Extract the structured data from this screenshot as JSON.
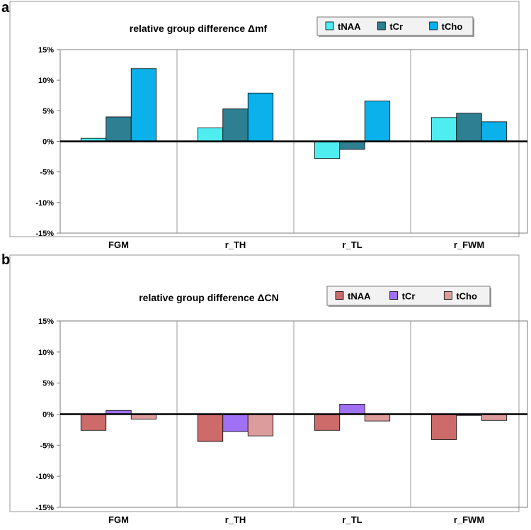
{
  "panels": [
    {
      "letter": "a"
    },
    {
      "letter": "b"
    }
  ],
  "chart_data": [
    {
      "type": "bar",
      "title": "relative group difference  Δmf",
      "categories": [
        "FGM",
        "r_TH",
        "r_TL",
        "r_FWM"
      ],
      "series": [
        {
          "name": "tNAA",
          "color": "#4dedf0",
          "values": [
            0.5,
            2.2,
            -2.8,
            3.9
          ]
        },
        {
          "name": "tCr",
          "color": "#2e7f92",
          "values": [
            4.0,
            5.3,
            -1.3,
            4.6
          ]
        },
        {
          "name": "tCho",
          "color": "#0bb1ea",
          "values": [
            11.9,
            7.9,
            6.6,
            3.2
          ]
        }
      ],
      "ylim": [
        -15,
        15
      ],
      "yticks": [
        15,
        10,
        5,
        0,
        -5,
        -10,
        -15
      ],
      "ytick_labels": [
        "15%",
        "10%",
        "5%",
        "0%",
        "-5%",
        "-10%",
        "-15%"
      ],
      "legend_position": "top-right",
      "grid": "vertical separators between categories"
    },
    {
      "type": "bar",
      "title": "relative group difference  ΔCN",
      "categories": [
        "FGM",
        "r_TH",
        "r_TL",
        "r_FWM"
      ],
      "series": [
        {
          "name": "tNAA",
          "color": "#cd6b6b",
          "values": [
            -2.6,
            -4.4,
            -2.6,
            -4.1
          ]
        },
        {
          "name": "tCr",
          "color": "#a070f5",
          "values": [
            0.6,
            -2.8,
            1.6,
            -0.2
          ]
        },
        {
          "name": "tCho",
          "color": "#dd9c9c",
          "values": [
            -0.8,
            -3.5,
            -1.1,
            -1.0
          ]
        }
      ],
      "ylim": [
        -15,
        15
      ],
      "yticks": [
        15,
        10,
        5,
        0,
        -5,
        -10,
        -15
      ],
      "ytick_labels": [
        "15%",
        "10%",
        "5%",
        "0%",
        "-5%",
        "-10%",
        "-15%"
      ],
      "legend_position": "top-right",
      "grid": "vertical separators between categories"
    }
  ]
}
